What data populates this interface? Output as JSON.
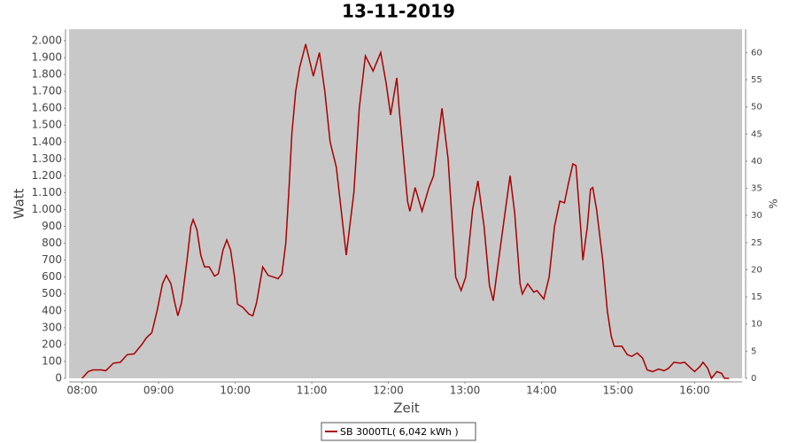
{
  "chart_data": {
    "type": "line",
    "title": "13-11-2019",
    "x_label": "Zeit",
    "y_label": "Watt",
    "y2_label": "%",
    "x": [
      8.0,
      8.08,
      8.14,
      8.25,
      8.31,
      8.41,
      8.5,
      8.59,
      8.68,
      8.78,
      8.84,
      8.91,
      8.98,
      9.05,
      9.1,
      9.16,
      9.21,
      9.25,
      9.3,
      9.37,
      9.42,
      9.45,
      9.5,
      9.55,
      9.6,
      9.66,
      9.73,
      9.78,
      9.84,
      9.89,
      9.94,
      9.99,
      10.03,
      10.1,
      10.18,
      10.23,
      10.28,
      10.36,
      10.43,
      10.5,
      10.56,
      10.61,
      10.66,
      10.7,
      10.74,
      10.79,
      10.84,
      10.92,
      11.02,
      11.1,
      11.17,
      11.24,
      11.32,
      11.45,
      11.55,
      11.62,
      11.7,
      11.8,
      11.9,
      11.97,
      12.03,
      12.11,
      12.14,
      12.25,
      12.28,
      12.35,
      12.44,
      12.53,
      12.59,
      12.7,
      12.78,
      12.88,
      12.95,
      13.01,
      13.1,
      13.17,
      13.25,
      13.32,
      13.37,
      13.47,
      13.59,
      13.65,
      13.72,
      13.75,
      13.82,
      13.9,
      13.94,
      14.03,
      14.1,
      14.17,
      14.24,
      14.3,
      14.35,
      14.41,
      14.45,
      14.51,
      14.54,
      14.6,
      14.64,
      14.67,
      14.72,
      14.8,
      14.86,
      14.91,
      14.95,
      15.05,
      15.12,
      15.18,
      15.25,
      15.32,
      15.38,
      15.45,
      15.53,
      15.6,
      15.66,
      15.73,
      15.81,
      15.87,
      15.95,
      16.0,
      16.07,
      16.11,
      16.17,
      16.22,
      16.29,
      16.35,
      16.39,
      16.45
    ],
    "series": [
      {
        "name": "SB 3000TL( 6,042 kWh )",
        "color": "#aa0000",
        "values": [
          0,
          40,
          50,
          50,
          45,
          90,
          95,
          140,
          145,
          200,
          240,
          270,
          400,
          560,
          610,
          560,
          450,
          370,
          450,
          700,
          900,
          940,
          880,
          730,
          660,
          660,
          605,
          620,
          760,
          820,
          760,
          600,
          440,
          420,
          380,
          370,
          450,
          660,
          610,
          600,
          590,
          620,
          800,
          1100,
          1450,
          1700,
          1840,
          1980,
          1790,
          1930,
          1700,
          1400,
          1250,
          730,
          1100,
          1600,
          1910,
          1820,
          1930,
          1750,
          1560,
          1780,
          1600,
          1050,
          990,
          1130,
          990,
          1130,
          1200,
          1600,
          1300,
          600,
          520,
          600,
          1000,
          1170,
          900,
          550,
          460,
          800,
          1200,
          980,
          560,
          500,
          560,
          510,
          520,
          470,
          600,
          900,
          1050,
          1040,
          1150,
          1270,
          1260,
          900,
          700,
          900,
          1120,
          1130,
          1000,
          700,
          400,
          250,
          190,
          190,
          140,
          130,
          150,
          120,
          50,
          40,
          55,
          45,
          60,
          95,
          90,
          95,
          60,
          40,
          70,
          95,
          60,
          0,
          40,
          30,
          0,
          0
        ]
      }
    ],
    "xlim": [
      7.83,
      16.62
    ],
    "xticks": [
      {
        "value": 8,
        "label": "08:00"
      },
      {
        "value": 9,
        "label": "09:00"
      },
      {
        "value": 10,
        "label": "10:00"
      },
      {
        "value": 11,
        "label": "11:00"
      },
      {
        "value": 12,
        "label": "12:00"
      },
      {
        "value": 13,
        "label": "13:00"
      },
      {
        "value": 14,
        "label": "14:00"
      },
      {
        "value": 15,
        "label": "15:00"
      },
      {
        "value": 16,
        "label": "16:00"
      }
    ],
    "ylim": [
      0,
      2068
    ],
    "yticks": [
      0,
      100,
      200,
      300,
      400,
      500,
      600,
      700,
      800,
      900,
      {
        "value": 1000,
        "label": "1.000"
      },
      {
        "value": 1100,
        "label": "1.100"
      },
      {
        "value": 1200,
        "label": "1.200"
      },
      {
        "value": 1300,
        "label": "1.300"
      },
      {
        "value": 1400,
        "label": "1.400"
      },
      {
        "value": 1500,
        "label": "1.500"
      },
      {
        "value": 1600,
        "label": "1.600"
      },
      {
        "value": 1700,
        "label": "1.700"
      },
      {
        "value": 1800,
        "label": "1.800"
      },
      {
        "value": 1900,
        "label": "1.900"
      },
      {
        "value": 2000,
        "label": "2.000"
      }
    ],
    "y2lim": [
      0,
      64.3
    ],
    "y2ticks": [
      0,
      5,
      10,
      15,
      20,
      25,
      30,
      35,
      40,
      45,
      50,
      55,
      60
    ],
    "grid": false,
    "legend": "bottom"
  }
}
